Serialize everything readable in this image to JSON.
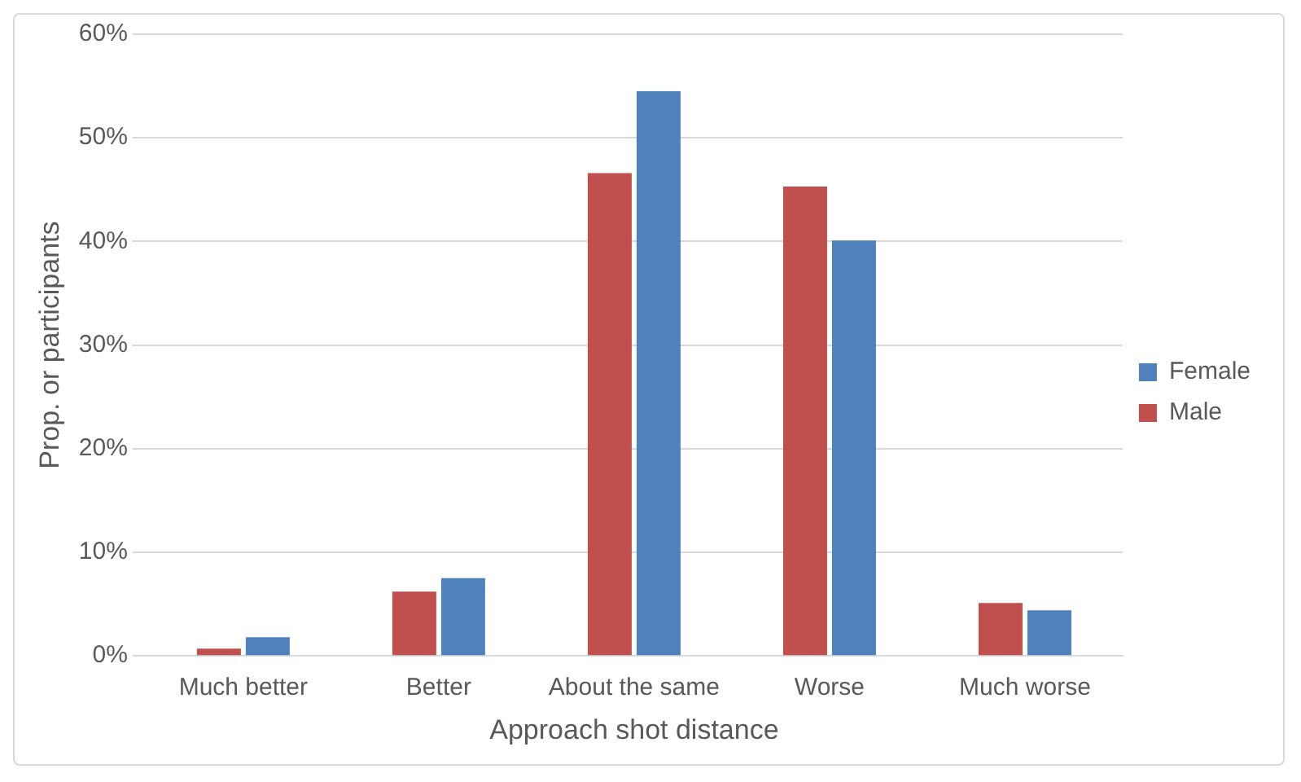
{
  "chart_data": {
    "type": "bar",
    "xlabel": "Approach shot distance",
    "ylabel": "Prop. or participants",
    "categories": [
      "Much better",
      "Better",
      "About the same",
      "Worse",
      "Much worse"
    ],
    "series": [
      {
        "name": "Male",
        "color": "#c0504d",
        "values": [
          0.7,
          6.2,
          46.6,
          45.3,
          5.1
        ]
      },
      {
        "name": "Female",
        "color": "#4f81bd",
        "values": [
          1.8,
          7.5,
          54.5,
          40.1,
          4.4
        ]
      }
    ],
    "ylim": [
      0,
      60
    ],
    "yticks": [
      {
        "value": 0,
        "label": "0%"
      },
      {
        "value": 10,
        "label": "10%"
      },
      {
        "value": 20,
        "label": "20%"
      },
      {
        "value": 30,
        "label": "30%"
      },
      {
        "value": 40,
        "label": "40%"
      },
      {
        "value": 50,
        "label": "50%"
      },
      {
        "value": 60,
        "label": "60%"
      }
    ],
    "grid": "y",
    "legend": "right"
  }
}
